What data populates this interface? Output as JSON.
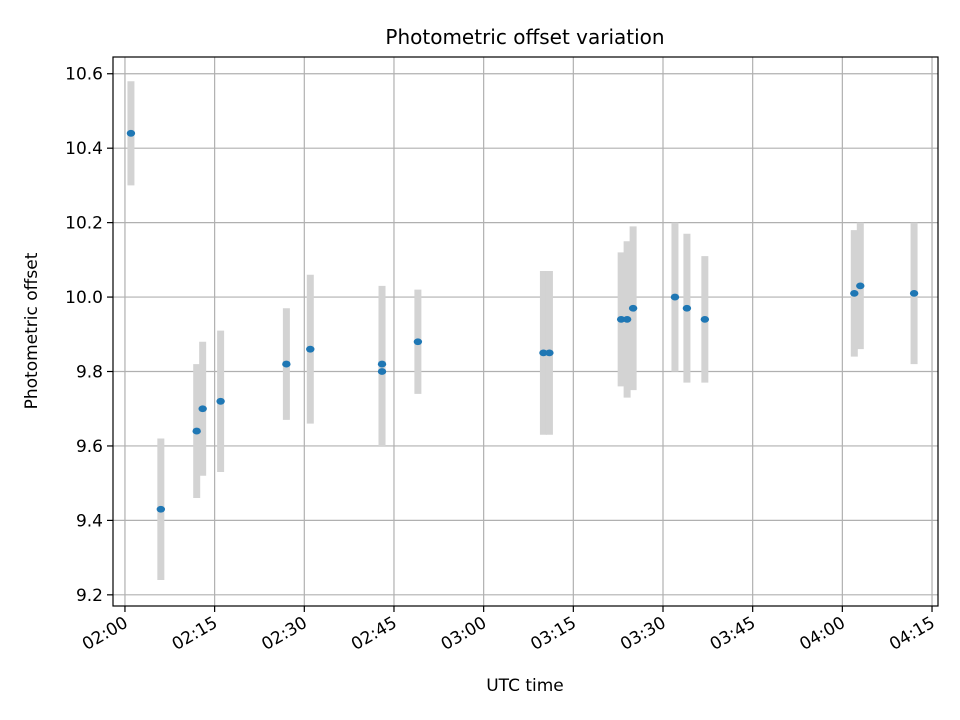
{
  "chart_data": {
    "type": "scatter",
    "title": "Photometric offset variation",
    "xlabel": "UTC time",
    "ylabel": "Photometric offset",
    "xlim": [
      "01:58",
      "04:16"
    ],
    "ylim": [
      9.17,
      10.645
    ],
    "grid": true,
    "x_ticks": [
      "02:00",
      "02:15",
      "02:30",
      "02:45",
      "03:00",
      "03:15",
      "03:30",
      "03:45",
      "04:00",
      "04:15"
    ],
    "y_ticks": [
      "9.2",
      "9.4",
      "9.6",
      "9.8",
      "10.0",
      "10.2",
      "10.4",
      "10.6"
    ],
    "colors": {
      "point": "#1f77b4",
      "errorbar": "#d3d3d3",
      "grid": "#b0b0b0"
    },
    "series": [
      {
        "points": [
          {
            "x": "02:01",
            "y": 10.44,
            "yerr": 0.14
          },
          {
            "x": "02:06",
            "y": 9.43,
            "yerr": 0.19
          },
          {
            "x": "02:12",
            "y": 9.64,
            "yerr": 0.18
          },
          {
            "x": "02:13",
            "y": 9.7,
            "yerr": 0.18
          },
          {
            "x": "02:16",
            "y": 9.72,
            "yerr": 0.19
          },
          {
            "x": "02:27",
            "y": 9.82,
            "yerr": 0.15
          },
          {
            "x": "02:31",
            "y": 9.86,
            "yerr": 0.2
          },
          {
            "x": "02:43",
            "y": 9.8,
            "yerr": 0.2
          },
          {
            "x": "02:43",
            "y": 9.82,
            "yerr": 0.21
          },
          {
            "x": "02:49",
            "y": 9.88,
            "yerr": 0.14
          },
          {
            "x": "03:10",
            "y": 9.85,
            "yerr": 0.22
          },
          {
            "x": "03:11",
            "y": 9.85,
            "yerr": 0.22
          },
          {
            "x": "03:23",
            "y": 9.94,
            "yerr": 0.18
          },
          {
            "x": "03:24",
            "y": 9.94,
            "yerr": 0.21
          },
          {
            "x": "03:25",
            "y": 9.97,
            "yerr": 0.22
          },
          {
            "x": "03:32",
            "y": 10.0,
            "yerr": 0.2
          },
          {
            "x": "03:34",
            "y": 9.97,
            "yerr": 0.2
          },
          {
            "x": "03:37",
            "y": 9.94,
            "yerr": 0.17
          },
          {
            "x": "04:02",
            "y": 10.01,
            "yerr": 0.17
          },
          {
            "x": "04:03",
            "y": 10.03,
            "yerr": 0.17
          },
          {
            "x": "04:12",
            "y": 10.01,
            "yerr": 0.19
          }
        ]
      }
    ]
  }
}
